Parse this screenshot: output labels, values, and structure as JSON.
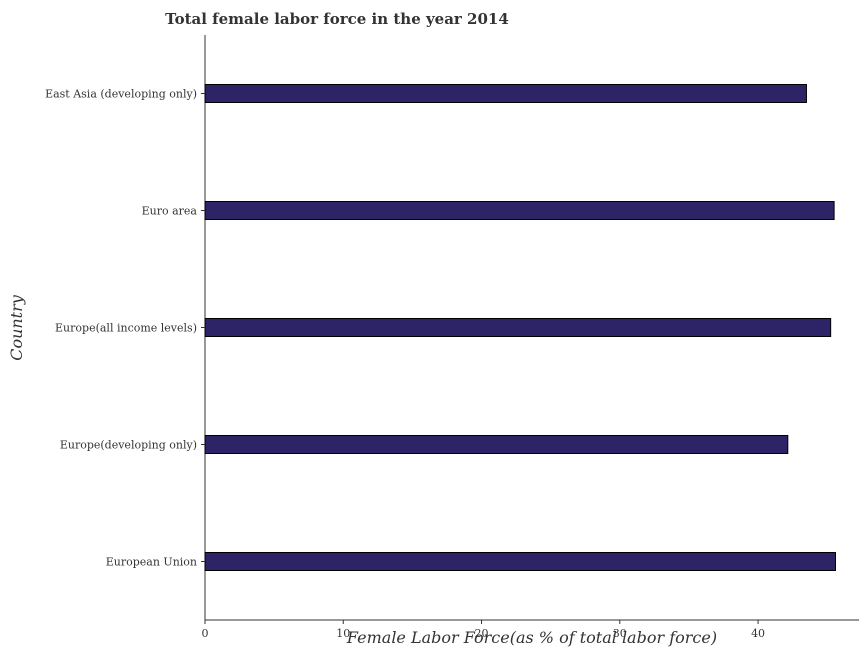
{
  "chart_data": {
    "type": "bar",
    "orientation": "horizontal",
    "title": "Total female labor force in the year 2014",
    "xlabel": "Female Labor Force(as % of total labor force)",
    "ylabel": "Country",
    "categories": [
      "East Asia (developing only)",
      "Euro area",
      "Europe(all income levels)",
      "Europe(developing only)",
      "European Union"
    ],
    "values": [
      43.5,
      45.5,
      45.25,
      42.15,
      45.6
    ],
    "xlim": [
      0,
      47.3
    ],
    "xticks": [
      0,
      10,
      20,
      30,
      40
    ],
    "xtick_labels": [
      "0",
      "10",
      "20",
      "30",
      "40"
    ],
    "grid": false,
    "bar_color": "#2d2467"
  }
}
